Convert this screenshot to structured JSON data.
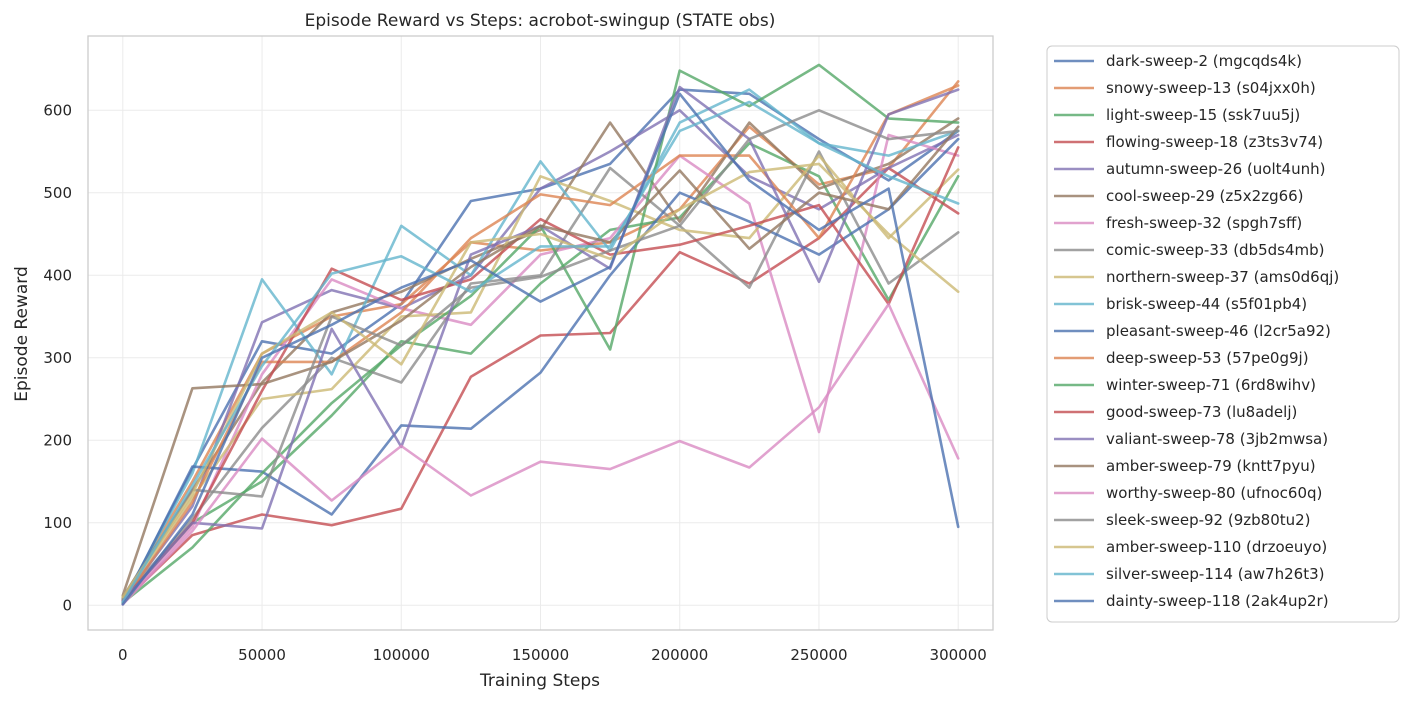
{
  "chart_data": {
    "type": "line",
    "title": "Episode Reward vs Steps: acrobot-swingup (STATE obs)",
    "xlabel": "Training Steps",
    "ylabel": "Episode Reward",
    "xlim": [
      -12500,
      312500
    ],
    "ylim": [
      -30,
      690
    ],
    "xticks": [
      0,
      50000,
      100000,
      150000,
      200000,
      250000,
      300000
    ],
    "yticks": [
      0,
      100,
      200,
      300,
      400,
      500,
      600
    ],
    "grid": true,
    "legend_position": "outside-right",
    "x": [
      0,
      25000,
      50000,
      75000,
      100000,
      125000,
      150000,
      175000,
      200000,
      225000,
      250000,
      275000,
      300000
    ],
    "series": [
      {
        "name": "dark-sweep-2 (mgcqds4k)",
        "color": "#4c72b0",
        "values": [
          3,
          165,
          320,
          305,
          365,
          490,
          505,
          535,
          625,
          620,
          565,
          515,
          575
        ]
      },
      {
        "name": "snowy-sweep-13 (s04jxx0h)",
        "color": "#dd8452",
        "values": [
          8,
          150,
          305,
          350,
          365,
          440,
          430,
          440,
          480,
          580,
          510,
          530,
          635
        ]
      },
      {
        "name": "light-sweep-15 (ssk7uu5j)",
        "color": "#55a868",
        "values": [
          5,
          100,
          150,
          230,
          320,
          305,
          390,
          455,
          470,
          560,
          520,
          370,
          520
        ]
      },
      {
        "name": "flowing-sweep-18 (z3ts3v74)",
        "color": "#c44e52",
        "values": [
          4,
          85,
          110,
          97,
          117,
          277,
          327,
          330,
          428,
          390,
          445,
          530,
          475
        ]
      },
      {
        "name": "autumn-sweep-26 (uolt4unh)",
        "color": "#8172b3",
        "values": [
          6,
          120,
          343,
          382,
          360,
          400,
          505,
          550,
          600,
          520,
          480,
          530,
          570
        ]
      },
      {
        "name": "cool-sweep-29 (z5x2zg66)",
        "color": "#937860",
        "values": [
          10,
          140,
          270,
          355,
          380,
          420,
          455,
          585,
          465,
          585,
          505,
          535,
          590
        ]
      },
      {
        "name": "fresh-sweep-32 (spgh7sff)",
        "color": "#da8bc3",
        "values": [
          2,
          95,
          280,
          395,
          360,
          340,
          425,
          445,
          545,
          487,
          210,
          570,
          545
        ]
      },
      {
        "name": "comic-sweep-33 (db5ds4mb)",
        "color": "#8c8c8c",
        "values": [
          7,
          105,
          215,
          300,
          270,
          390,
          400,
          530,
          460,
          385,
          550,
          390,
          452
        ]
      },
      {
        "name": "northern-sweep-37 (ams0d6qj)",
        "color": "#ccb974",
        "values": [
          9,
          130,
          250,
          262,
          350,
          355,
          520,
          490,
          455,
          445,
          545,
          445,
          528
        ]
      },
      {
        "name": "brisk-sweep-44 (s5f01pb4)",
        "color": "#64b5cd",
        "values": [
          5,
          160,
          395,
          280,
          460,
          400,
          538,
          430,
          585,
          625,
          560,
          545,
          575
        ]
      },
      {
        "name": "pleasant-sweep-46 (l2cr5a92)",
        "color": "#4c72b0",
        "values": [
          2,
          168,
          162,
          110,
          218,
          214,
          282,
          400,
          500,
          465,
          425,
          480,
          565
        ]
      },
      {
        "name": "deep-sweep-53 (57pe0g9j)",
        "color": "#dd8452",
        "values": [
          4,
          125,
          295,
          295,
          355,
          445,
          498,
          485,
          545,
          545,
          445,
          595,
          630
        ]
      },
      {
        "name": "winter-sweep-71 (6rd8wihv)",
        "color": "#55a868",
        "values": [
          3,
          70,
          160,
          245,
          315,
          375,
          460,
          310,
          648,
          605,
          655,
          590,
          585
        ]
      },
      {
        "name": "good-sweep-73 (lu8adelj)",
        "color": "#c44e52",
        "values": [
          6,
          100,
          260,
          408,
          370,
          395,
          468,
          425,
          437,
          460,
          485,
          365,
          555
        ]
      },
      {
        "name": "valiant-sweep-78 (3jb2mwsa)",
        "color": "#8172b3",
        "values": [
          5,
          100,
          93,
          335,
          192,
          425,
          460,
          408,
          628,
          565,
          392,
          595,
          625
        ]
      },
      {
        "name": "amber-sweep-79 (kntt7pyu)",
        "color": "#937860",
        "values": [
          12,
          263,
          268,
          295,
          345,
          410,
          460,
          440,
          527,
          432,
          500,
          480,
          580
        ]
      },
      {
        "name": "worthy-sweep-80 (ufnoc60q)",
        "color": "#da8bc3",
        "values": [
          1,
          90,
          202,
          127,
          193,
          133,
          174,
          165,
          199,
          167,
          240,
          365,
          178
        ]
      },
      {
        "name": "sleek-sweep-92 (9zb80tu2)",
        "color": "#8c8c8c",
        "values": [
          8,
          140,
          132,
          350,
          315,
          385,
          398,
          430,
          460,
          565,
          600,
          565,
          575
        ]
      },
      {
        "name": "amber-sweep-110 (drzoeuyo)",
        "color": "#ccb974",
        "values": [
          10,
          135,
          305,
          355,
          292,
          440,
          450,
          420,
          480,
          525,
          535,
          450,
          380
        ]
      },
      {
        "name": "silver-sweep-114 (aw7h26t3)",
        "color": "#64b5cd",
        "values": [
          4,
          145,
          290,
          402,
          423,
          380,
          435,
          435,
          575,
          610,
          560,
          520,
          487
        ]
      },
      {
        "name": "dainty-sweep-118 (2ak4up2r)",
        "color": "#4c72b0",
        "values": [
          1,
          110,
          300,
          340,
          385,
          418,
          368,
          410,
          620,
          515,
          455,
          505,
          95
        ]
      }
    ]
  }
}
